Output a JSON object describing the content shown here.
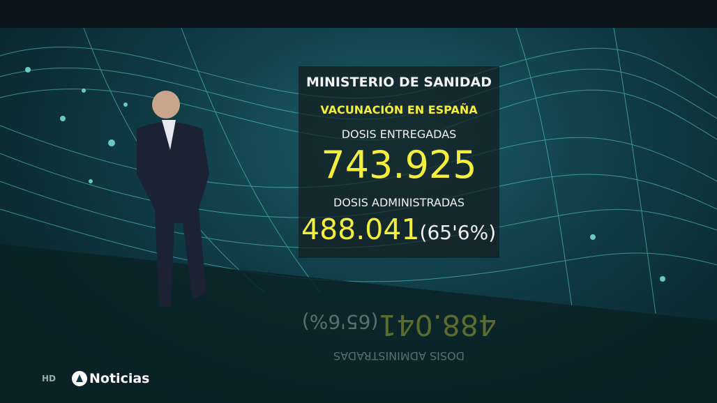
{
  "panel": {
    "title": "MINISTERIO DE SANIDAD",
    "subtitle": "VACUNACIÓN EN ESPAÑA",
    "delivered_label": "DOSIS ENTREGADAS",
    "delivered_value": "743.925",
    "administered_label": "DOSIS ADMINISTRADAS",
    "administered_value": "488.041",
    "administered_percent": "(65'6%)"
  },
  "logo": {
    "quality": "HD",
    "brand": "Noticias"
  }
}
